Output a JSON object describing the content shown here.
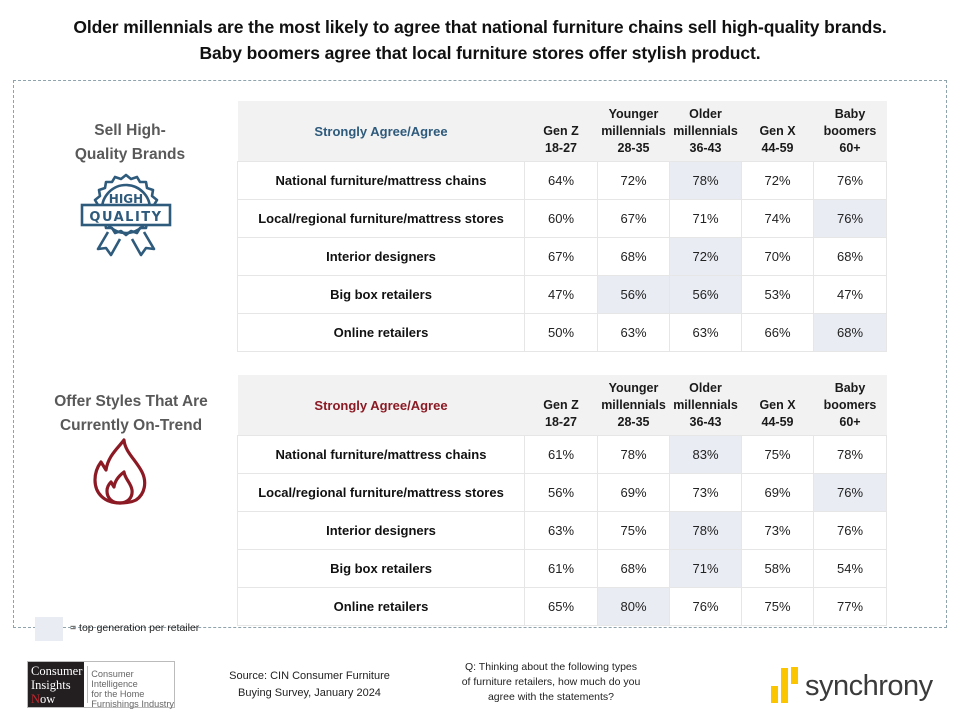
{
  "headline": "Older millennials are the most likely to agree that national furniture chains sell high-quality brands. Baby boomers agree that local furniture stores offer stylish product.",
  "colors": {
    "quality_accent": "#2e5a7c",
    "trend_accent": "#8b1a24",
    "highlight": "#e9ecf3",
    "header_bg": "#f2f2f2",
    "synchrony_yellow": "#fbc600"
  },
  "chart_data": [
    {
      "type": "table",
      "title": "Sell High-Quality Brands",
      "icon": "high-quality-badge-icon",
      "row_header": "Strongly Agree/Agree",
      "columns": [
        {
          "name": "Gen Z",
          "ages": "18-27"
        },
        {
          "name": "Younger millennials",
          "ages": "28-35"
        },
        {
          "name": "Older millennials",
          "ages": "36-43"
        },
        {
          "name": "Gen X",
          "ages": "44-59"
        },
        {
          "name": "Baby boomers",
          "ages": "60+"
        }
      ],
      "rows": [
        {
          "label": "National furniture/mattress chains",
          "values": [
            "64%",
            "72%",
            "78%",
            "72%",
            "76%"
          ],
          "highlight": [
            2
          ]
        },
        {
          "label": "Local/regional furniture/mattress stores",
          "values": [
            "60%",
            "67%",
            "71%",
            "74%",
            "76%"
          ],
          "highlight": [
            4
          ]
        },
        {
          "label": "Interior designers",
          "values": [
            "67%",
            "68%",
            "72%",
            "70%",
            "68%"
          ],
          "highlight": [
            2
          ]
        },
        {
          "label": "Big box retailers",
          "values": [
            "47%",
            "56%",
            "56%",
            "53%",
            "47%"
          ],
          "highlight": [
            1,
            2
          ]
        },
        {
          "label": "Online retailers",
          "values": [
            "50%",
            "63%",
            "63%",
            "66%",
            "68%"
          ],
          "highlight": [
            4
          ]
        }
      ]
    },
    {
      "type": "table",
      "title": "Offer Styles That Are Currently On-Trend",
      "icon": "flame-icon",
      "row_header": "Strongly Agree/Agree",
      "columns": [
        {
          "name": "Gen Z",
          "ages": "18-27"
        },
        {
          "name": "Younger millennials",
          "ages": "28-35"
        },
        {
          "name": "Older millennials",
          "ages": "36-43"
        },
        {
          "name": "Gen X",
          "ages": "44-59"
        },
        {
          "name": "Baby boomers",
          "ages": "60+"
        }
      ],
      "rows": [
        {
          "label": "National furniture/mattress chains",
          "values": [
            "61%",
            "78%",
            "83%",
            "75%",
            "78%"
          ],
          "highlight": [
            2
          ]
        },
        {
          "label": "Local/regional furniture/mattress stores",
          "values": [
            "56%",
            "69%",
            "73%",
            "69%",
            "76%"
          ],
          "highlight": [
            4
          ]
        },
        {
          "label": "Interior designers",
          "values": [
            "63%",
            "75%",
            "78%",
            "73%",
            "76%"
          ],
          "highlight": [
            2
          ]
        },
        {
          "label": "Big box retailers",
          "values": [
            "61%",
            "68%",
            "71%",
            "58%",
            "54%"
          ],
          "highlight": [
            2
          ]
        },
        {
          "label": "Online retailers",
          "values": [
            "65%",
            "80%",
            "76%",
            "75%",
            "77%"
          ],
          "highlight": [
            1
          ]
        }
      ]
    }
  ],
  "sections": {
    "quality": {
      "title_line1": "Sell High-",
      "title_line2": "Quality Brands",
      "badge_top": "HIGH",
      "badge_bottom": "QUALITY"
    },
    "trend": {
      "title_line1": "Offer Styles That Are",
      "title_line2": "Currently On-Trend"
    }
  },
  "legend": {
    "text": "= top generation per retailer"
  },
  "footer": {
    "cin_logo": {
      "line1": "Consumer",
      "line2": "Insights",
      "line3_first": "N",
      "line3_rest": "ow",
      "tag1": "Consumer Intelligence",
      "tag2": "for the Home",
      "tag3": "Furnishings Industry"
    },
    "source_line1": "Source: CIN Consumer Furniture",
    "source_line2": "Buying Survey, January 2024",
    "question_line1": "Q: Thinking about the following types",
    "question_line2": "of furniture retailers, how much do you",
    "question_line3": "agree with the statements?",
    "synchrony_label": "synchrony"
  }
}
